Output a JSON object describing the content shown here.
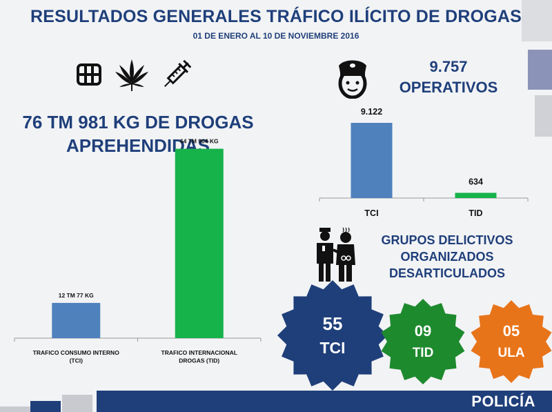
{
  "header": {
    "title": "RESULTADOS GENERALES TRÁFICO ILÍCITO DE DROGAS",
    "subtitle": "01 DE ENERO AL 10 DE NOVIEMBRE 2016"
  },
  "icons": [
    "package-icon",
    "cannabis-leaf-icon",
    "syringe-icon",
    "police-officer-icon",
    "police-arrest-icon"
  ],
  "drugs": {
    "headline_line1": "76 TM 981 KG DE DROGAS",
    "headline_line2": "APREHENDIDAS"
  },
  "operations": {
    "value": "9.757",
    "label": "OPERATIVOS"
  },
  "groups": {
    "line1": "GRUPOS DELICTIVOS",
    "line2": "ORGANIZADOS",
    "line3": "DESARTICULADOS"
  },
  "badges": [
    {
      "number": "55",
      "label": "TCI",
      "color": "#1f3f7a"
    },
    {
      "number": "09",
      "label": "TID",
      "color": "#1e8a2e"
    },
    {
      "number": "05",
      "label": "ULA",
      "color": "#e8741a"
    }
  ],
  "footer": {
    "label": "POLICÍA"
  },
  "colors": {
    "navy": "#1f3f7a",
    "blue_bar": "#4f81bd",
    "green_bar": "#16b24a"
  },
  "chart_data": [
    {
      "type": "bar",
      "title": "",
      "categories": [
        "TRAFICO CONSUMO INTERNO\n(TCI)",
        "TRAFICO INTERNACIONAL\nDROGAS (TID)"
      ],
      "values": [
        12.077,
        64.904
      ],
      "data_labels": [
        "12 TM 77 KG",
        "64 TM 904 KG"
      ],
      "colors": [
        "#4f81bd",
        "#16b24a"
      ],
      "ylim": [
        0,
        70
      ],
      "grid": false
    },
    {
      "type": "bar",
      "title": "",
      "categories": [
        "TCI",
        "TID"
      ],
      "values": [
        9122,
        634
      ],
      "data_labels": [
        "9.122",
        "634"
      ],
      "colors": [
        "#4f81bd",
        "#16b24a"
      ],
      "ylim": [
        0,
        9122
      ],
      "grid": false
    }
  ]
}
